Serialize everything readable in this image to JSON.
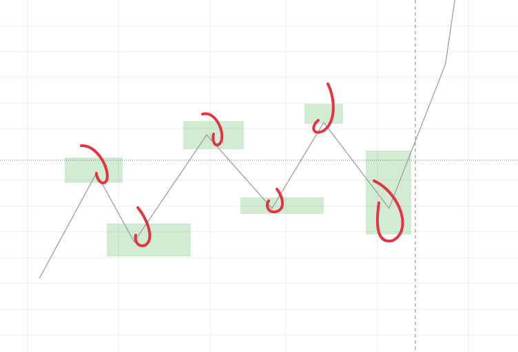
{
  "chart_data": {
    "type": "line",
    "x": [
      7.6,
      18.6,
      25.9,
      39.9,
      52.5,
      62.5,
      75.1,
      86.0,
      87.8
    ],
    "values": [
      20.9,
      50.8,
      31.3,
      61.7,
      40.8,
      65.2,
      40.8,
      81.8,
      100
    ],
    "color": "#9e9e9e",
    "xlim": [
      0,
      100
    ],
    "ylim": [
      0,
      100
    ]
  }
}
